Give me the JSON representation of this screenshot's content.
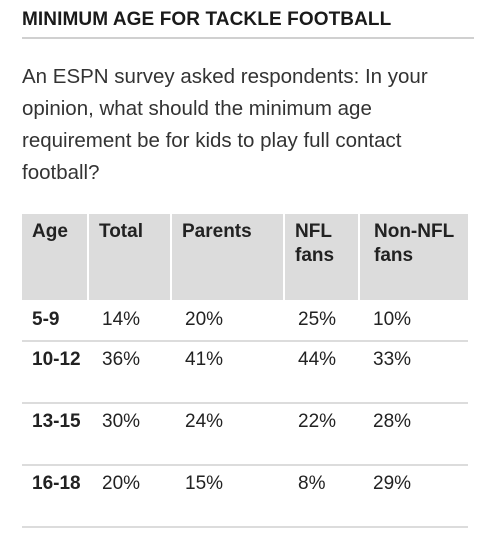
{
  "title": "MINIMUM AGE FOR TACKLE FOOTBALL",
  "description": "An ESPN survey asked respondents: In your opinion, what should the minimum age requirement be for kids to play full contact football?",
  "table": {
    "headers": {
      "age": "Age",
      "total": "Total",
      "parents": "Parents",
      "nfl": "NFL fans",
      "nonnfl": "Non-NFL fans"
    },
    "rows": [
      {
        "age": "5-9",
        "total": "14%",
        "parents": "20%",
        "nfl": "25%",
        "nonnfl": "10%"
      },
      {
        "age": "10-12",
        "total": "36%",
        "parents": "41%",
        "nfl": "44%",
        "nonnfl": "33%"
      },
      {
        "age": "13-15",
        "total": "30%",
        "parents": "24%",
        "nfl": "22%",
        "nonnfl": "28%"
      },
      {
        "age": "16-18",
        "total": "20%",
        "parents": "15%",
        "nfl": "8%",
        "nonnfl": "29%"
      }
    ]
  }
}
